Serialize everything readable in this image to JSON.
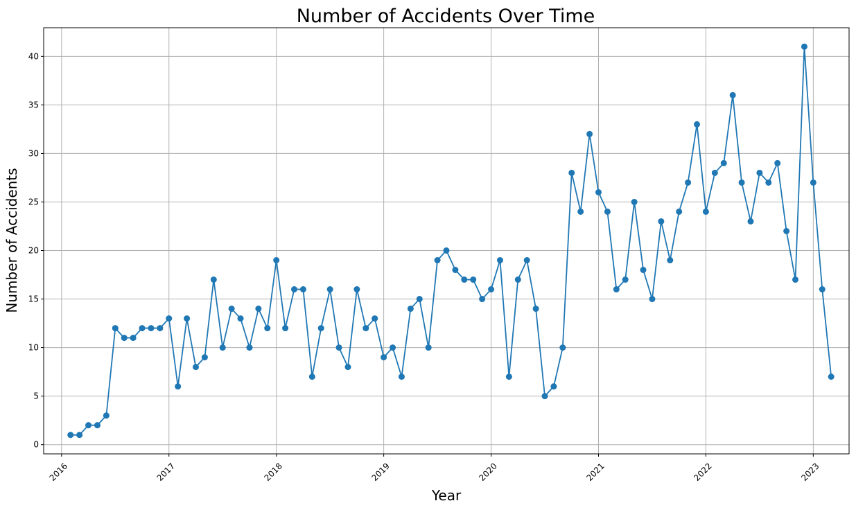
{
  "chart_data": {
    "type": "line",
    "title": "Number of Accidents Over Time",
    "xlabel": "Year",
    "ylabel": "Number of Accidents",
    "x_ticks": [
      "2016",
      "2017",
      "2018",
      "2019",
      "2020",
      "2021",
      "2022",
      "2023"
    ],
    "y_ticks": [
      0,
      5,
      10,
      15,
      20,
      25,
      30,
      35,
      40
    ],
    "xlim": [
      "2015-11",
      "2023-05"
    ],
    "ylim": [
      -0.95,
      42.95
    ],
    "grid": true,
    "marker": "circle",
    "color": "#1f77b4",
    "series": [
      {
        "x": [
          "2016-02",
          "2016-03",
          "2016-04",
          "2016-05",
          "2016-06",
          "2016-07",
          "2016-08",
          "2016-09",
          "2016-10",
          "2016-11",
          "2016-12",
          "2017-01",
          "2017-02",
          "2017-03",
          "2017-04",
          "2017-05",
          "2017-06",
          "2017-07",
          "2017-08",
          "2017-09",
          "2017-10",
          "2017-11",
          "2017-12",
          "2018-01",
          "2018-02",
          "2018-03",
          "2018-04",
          "2018-05",
          "2018-06",
          "2018-07",
          "2018-08",
          "2018-09",
          "2018-10",
          "2018-11",
          "2018-12",
          "2019-01",
          "2019-02",
          "2019-03",
          "2019-04",
          "2019-05",
          "2019-06",
          "2019-07",
          "2019-08",
          "2019-09",
          "2019-10",
          "2019-11",
          "2019-12",
          "2020-01",
          "2020-02",
          "2020-03",
          "2020-04",
          "2020-05",
          "2020-06",
          "2020-07",
          "2020-08",
          "2020-09",
          "2020-10",
          "2020-11",
          "2020-12",
          "2021-01",
          "2021-02",
          "2021-03",
          "2021-04",
          "2021-05",
          "2021-06",
          "2021-07",
          "2021-08",
          "2021-09",
          "2021-10",
          "2021-11",
          "2021-12",
          "2022-01",
          "2022-02",
          "2022-03",
          "2022-04",
          "2022-05",
          "2022-06",
          "2022-07",
          "2022-08",
          "2022-09",
          "2022-10",
          "2022-11",
          "2022-12",
          "2023-01",
          "2023-02",
          "2023-03"
        ],
        "values": [
          1,
          1,
          2,
          2,
          3,
          12,
          11,
          11,
          12,
          12,
          12,
          13,
          6,
          13,
          8,
          9,
          17,
          10,
          14,
          13,
          10,
          14,
          12,
          19,
          12,
          16,
          16,
          7,
          12,
          16,
          10,
          8,
          16,
          12,
          13,
          9,
          10,
          7,
          14,
          15,
          10,
          19,
          20,
          18,
          17,
          17,
          15,
          16,
          19,
          7,
          17,
          19,
          14,
          5,
          6,
          10,
          28,
          24,
          32,
          26,
          24,
          16,
          17,
          25,
          18,
          15,
          23,
          19,
          24,
          27,
          33,
          24,
          28,
          29,
          36,
          27,
          23,
          28,
          27,
          29,
          22,
          17,
          41,
          27,
          16,
          7
        ]
      }
    ]
  }
}
